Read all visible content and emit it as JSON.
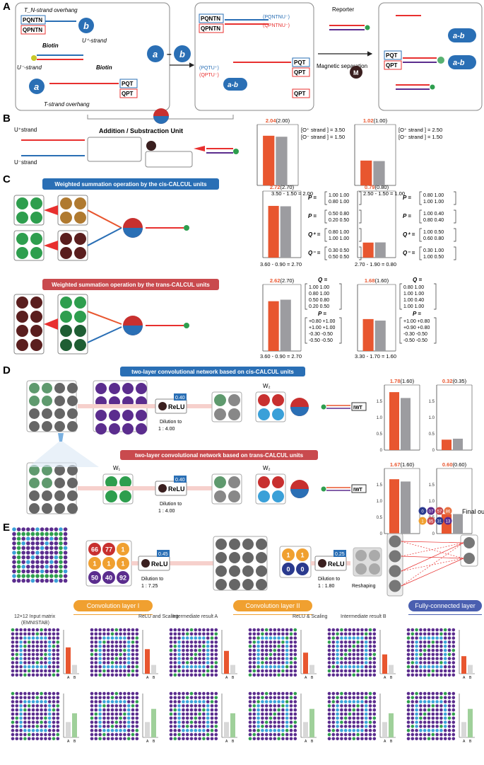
{
  "panel_letters": [
    "A",
    "B",
    "C",
    "D",
    "E"
  ],
  "panelA": {
    "labels": {
      "tn_overhang": "T_N-strand overhang",
      "u_plus": "U⁺-strand",
      "u_minus": "U⁻-strand",
      "biotin": "Biotin",
      "t_overhang": "T-strand overhang",
      "reporter": "Reporter",
      "magnetic": "Magnetic separation",
      "pqntn": "PQNTN",
      "qpntn": "QPNTN",
      "pqntnu": "(PQNTNU⁻)",
      "qpntnu": "(QPNTNU⁻)",
      "pqtu": "(PQTU⁺)",
      "qptu": "(QPTU⁻)",
      "pqt": "PQT",
      "qpt": "QPT",
      "a": "a",
      "b": "b",
      "minus": "–",
      "ab": "a-b",
      "m": "M"
    }
  },
  "panelB": {
    "unit_title": "Addition / Substraction Unit",
    "u_plus_strand": "U⁺strand",
    "u_minus_strand": "U⁻strand",
    "charts": [
      {
        "head_bold": "2.04",
        "head_paren": "(2.00)",
        "o_plus": "[O⁺ strand ] = 3.50",
        "o_minus": "[O⁻ strand ] = 1.50",
        "eq": "3.50 - 1.50 = 2.00"
      },
      {
        "head_bold": "1.02",
        "head_paren": "(1.00)",
        "o_plus": "[O⁺ strand ] = 2.50",
        "o_minus": "[O⁻ strand ] = 1.50",
        "eq": "2.50 - 1.50 = 1.00"
      }
    ]
  },
  "panelC": {
    "cis_title": "Weighted summation operation by the cis-CALCUL units",
    "trans_title": "Weighted summation operation by the trans-CALCUL units",
    "cis_charts": [
      {
        "head_bold": "2.72",
        "head_paren": "(2.70)",
        "eq": "3.60 - 0.90 = 2.70",
        "P": [
          "1.00 1.00",
          "0.80 1.00"
        ],
        "Pm": [
          "0.50 0.80",
          "0.20 0.50"
        ],
        "Qp": [
          "0.80 1.00",
          "1.00 1.00"
        ],
        "Qm": [
          "0.30 0.50",
          "0.50 0.50"
        ]
      },
      {
        "head_bold": "0.79",
        "head_paren": "(0.80)",
        "eq": "2.70 - 1.90 = 0.80",
        "P": [
          "0.80 1.00",
          "1.00 1.00"
        ],
        "Pm": [
          "1.00 0.40",
          "0.80 0.40"
        ],
        "Qp": [
          "1.00 0.50",
          "0.60 0.80"
        ],
        "Qm": [
          "0.30 1.00",
          "1.00 0.50"
        ]
      }
    ],
    "trans_charts": [
      {
        "head_bold": "2.62",
        "head_paren": "(2.70)",
        "eq": "3.60 - 0.90 = 2.70",
        "Q": [
          "1.00 1.00",
          "0.80 1.00",
          "0.50 0.80",
          "0.20 0.50"
        ],
        "P": [
          "+0.80 +1.00",
          "+1.00 +1.00",
          "-0.30 -0.50",
          "-0.50 -0.50"
        ]
      },
      {
        "head_bold": "1.68",
        "head_paren": "(1.60)",
        "eq": "3.30 - 1.70 = 1.60",
        "Q": [
          "0.80 1.00",
          "1.00 1.00",
          "1.00 0.40",
          "1.00 1.00"
        ],
        "P": [
          "+1.00 +0.80",
          "+0.90 +0.80",
          "-0.30 -0.50",
          "-0.50 -0.50"
        ]
      }
    ],
    "sym_P": "P =",
    "sym_Q": "Q =",
    "sym_Qp": "Q⁺ =",
    "sym_Qm": "Q⁻ ="
  },
  "panelD": {
    "cis_title": "two-layer convolutional network based on cis-CALCUL units",
    "trans_title": "two-layer convolutional network based on trans-CALCUL units",
    "relu_label": "ReLU",
    "relu_value": "0.40",
    "dilution": "Dilution to",
    "dilution_ratio": "1 : 4.00",
    "w1": "W₁",
    "w2": "W₂",
    "iwt": "IWT",
    "cis_charts": [
      {
        "head_bold": "1.78",
        "head_paren": "(1.60)"
      },
      {
        "head_bold": "0.32",
        "head_paren": "(0.35)"
      }
    ],
    "trans_charts": [
      {
        "head_bold": "1.67",
        "head_paren": "(1.60)"
      },
      {
        "head_bold": "0.60",
        "head_paren": "(0.60)"
      }
    ]
  },
  "panelE": {
    "kernel_values": [
      "66",
      "77",
      "1",
      "1",
      "1",
      "1",
      "50",
      "40",
      "92"
    ],
    "small_kernel": [
      "1",
      "1",
      "0",
      "0"
    ],
    "fc_weights_top": [
      "0",
      "07",
      "57",
      "86"
    ],
    "fc_weights_bottom": [
      "1",
      "85",
      "31",
      "13"
    ],
    "relu1_value": "0.45",
    "relu2_value": "0.25",
    "relu_label": "ReLU",
    "dilution1": "Dilution to",
    "dilution1_ratio": "1 : 7.25",
    "dilution2": "Dilution to",
    "dilution2_ratio": "1 : 1.80",
    "reshaping": "Reshaping",
    "final_output": "Final output",
    "conv1": "Convolution layer I",
    "conv2": "Convolution layer II",
    "fc": "Fully-connected layer",
    "captions": {
      "input": "12×12 Input matrix",
      "input_sub": "(EMNISTAB)",
      "relu_scaling": "ReLU and Scaling",
      "inter_a": "Intermediate result A",
      "relu_scaling2": "ReLU & Scaling",
      "inter_b": "Intermediate result B"
    },
    "bar_axis_labels": [
      "A",
      "B"
    ]
  },
  "chart_data": [
    {
      "type": "bar",
      "categories": [
        "exp",
        "theory"
      ],
      "values": [
        2.04,
        2.0
      ],
      "ylim": [
        0,
        2.5
      ],
      "yticks": []
    },
    {
      "type": "bar",
      "categories": [
        "exp",
        "theory"
      ],
      "values": [
        1.02,
        1.0
      ],
      "ylim": [
        0,
        2.5
      ],
      "yticks": []
    },
    {
      "type": "bar",
      "categories": [
        "exp",
        "theory"
      ],
      "values": [
        2.72,
        2.7
      ],
      "ylim": [
        0,
        3.5
      ],
      "yticks": []
    },
    {
      "type": "bar",
      "categories": [
        "exp",
        "theory"
      ],
      "values": [
        0.79,
        0.8
      ],
      "ylim": [
        0,
        3.5
      ],
      "yticks": []
    },
    {
      "type": "bar",
      "categories": [
        "exp",
        "theory"
      ],
      "values": [
        2.62,
        2.7
      ],
      "ylim": [
        0,
        3.5
      ],
      "yticks": []
    },
    {
      "type": "bar",
      "categories": [
        "exp",
        "theory"
      ],
      "values": [
        1.68,
        1.6
      ],
      "ylim": [
        0,
        3.5
      ],
      "yticks": []
    },
    {
      "type": "bar",
      "categories": [
        "exp",
        "theory"
      ],
      "values": [
        1.78,
        1.6
      ],
      "ylim": [
        0,
        2.0
      ],
      "yticks": [
        "1.5",
        "1.0",
        "0.5",
        "0"
      ]
    },
    {
      "type": "bar",
      "categories": [
        "exp",
        "theory"
      ],
      "values": [
        0.32,
        0.35
      ],
      "ylim": [
        0,
        2.0
      ],
      "yticks": [
        "1.5",
        "1.0",
        "0.5",
        "0"
      ]
    },
    {
      "type": "bar",
      "categories": [
        "exp",
        "theory"
      ],
      "values": [
        1.67,
        1.6
      ],
      "ylim": [
        0,
        2.0
      ],
      "yticks": [
        "1.5",
        "1.0",
        "0.5",
        "0"
      ]
    },
    {
      "type": "bar",
      "categories": [
        "exp",
        "theory"
      ],
      "values": [
        0.6,
        0.6
      ],
      "ylim": [
        0,
        2.0
      ],
      "yticks": [
        "1.5",
        "1.0",
        "0.5",
        "0"
      ]
    }
  ],
  "colors": {
    "red": "#e8562f",
    "grey": "#9c9ca0",
    "blue": "#2a6fb5",
    "trans": "#c94a4e",
    "orange": "#f0a030",
    "purple": "#5b2d8e",
    "green": "#2e9e4e",
    "darkbrown": "#5a1e1e"
  }
}
